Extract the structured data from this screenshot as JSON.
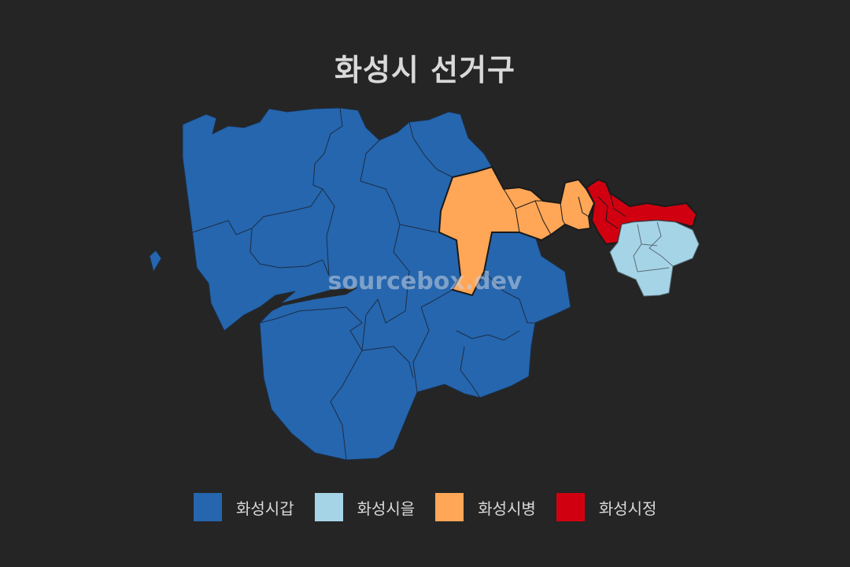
{
  "title": "화성시 선거구",
  "watermark": "sourcebox.dev",
  "districts": [
    {
      "name": "화성시갑",
      "color": "#2566AE"
    },
    {
      "name": "화성시을",
      "color": "#A5D4E6"
    },
    {
      "name": "화성시병",
      "color": "#FFA657"
    },
    {
      "name": "화성시정",
      "color": "#D10010"
    }
  ],
  "legend": {
    "items": [
      {
        "label": "화성시갑"
      },
      {
        "label": "화성시을"
      },
      {
        "label": "화성시병"
      },
      {
        "label": "화성시정"
      }
    ]
  }
}
